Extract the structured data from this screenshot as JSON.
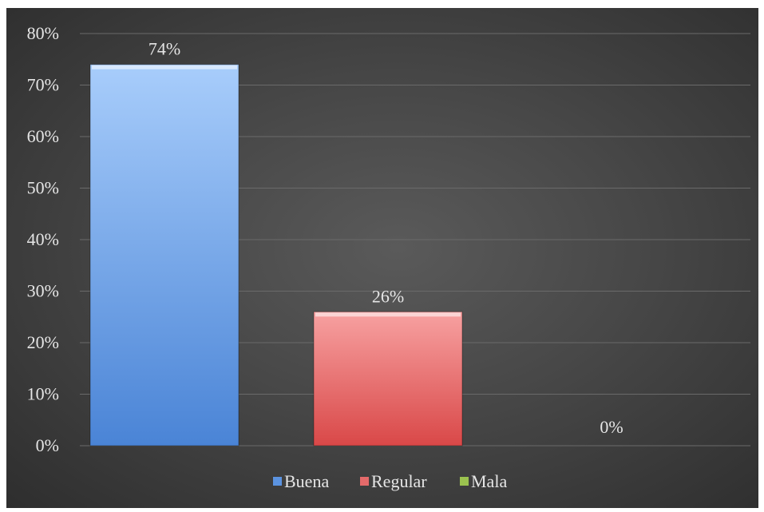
{
  "chart_data": {
    "type": "bar",
    "categories": [
      "Buena",
      "Regular",
      "Mala"
    ],
    "values": [
      74,
      26,
      0
    ],
    "data_labels": [
      "74%",
      "26%",
      "0%"
    ],
    "ylim": [
      0,
      80
    ],
    "yticks": [
      0,
      10,
      20,
      30,
      40,
      50,
      60,
      70,
      80
    ],
    "ytick_labels": [
      "0%",
      "10%",
      "20%",
      "30%",
      "40%",
      "50%",
      "60%",
      "70%",
      "80%"
    ],
    "grid": true,
    "legend_position": "bottom",
    "colors": [
      "#5b93e0",
      "#e46a6a",
      "#9bc24f"
    ],
    "title": "",
    "xlabel": "",
    "ylabel": ""
  }
}
